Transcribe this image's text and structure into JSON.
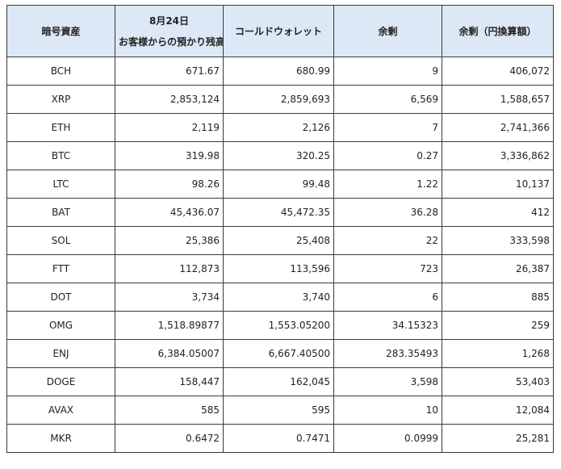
{
  "headers": {
    "asset": "暗号資産",
    "customer_date": "8月24日",
    "customer_label": "お客様からの預かり残高",
    "cold_wallet": "コールドウォレット",
    "surplus": "余剰",
    "surplus_jpy": "余剰（円換算額）"
  },
  "rows": [
    {
      "asset": "BCH",
      "customer": "671.67",
      "cold": "680.99",
      "surplus": "9",
      "jpy": "406,072"
    },
    {
      "asset": "XRP",
      "customer": "2,853,124",
      "cold": "2,859,693",
      "surplus": "6,569",
      "jpy": "1,588,657"
    },
    {
      "asset": "ETH",
      "customer": "2,119",
      "cold": "2,126",
      "surplus": "7",
      "jpy": "2,741,366"
    },
    {
      "asset": "BTC",
      "customer": "319.98",
      "cold": "320.25",
      "surplus": "0.27",
      "jpy": "3,336,862"
    },
    {
      "asset": "LTC",
      "customer": "98.26",
      "cold": "99.48",
      "surplus": "1.22",
      "jpy": "10,137"
    },
    {
      "asset": "BAT",
      "customer": "45,436.07",
      "cold": "45,472.35",
      "surplus": "36.28",
      "jpy": "412"
    },
    {
      "asset": "SOL",
      "customer": "25,386",
      "cold": "25,408",
      "surplus": "22",
      "jpy": "333,598"
    },
    {
      "asset": "FTT",
      "customer": "112,873",
      "cold": "113,596",
      "surplus": "723",
      "jpy": "26,387"
    },
    {
      "asset": "DOT",
      "customer": "3,734",
      "cold": "3,740",
      "surplus": "6",
      "jpy": "885"
    },
    {
      "asset": "OMG",
      "customer": "1,518.89877",
      "cold": "1,553.05200",
      "surplus": "34.15323",
      "jpy": "259"
    },
    {
      "asset": "ENJ",
      "customer": "6,384.05007",
      "cold": "6,667.40500",
      "surplus": "283.35493",
      "jpy": "1,268"
    },
    {
      "asset": "DOGE",
      "customer": "158,447",
      "cold": "162,045",
      "surplus": "3,598",
      "jpy": "53,403"
    },
    {
      "asset": "AVAX",
      "customer": "585",
      "cold": "595",
      "surplus": "10",
      "jpy": "12,084"
    },
    {
      "asset": "MKR",
      "customer": "0.6472",
      "cold": "0.7471",
      "surplus": "0.0999",
      "jpy": "25,281"
    }
  ]
}
